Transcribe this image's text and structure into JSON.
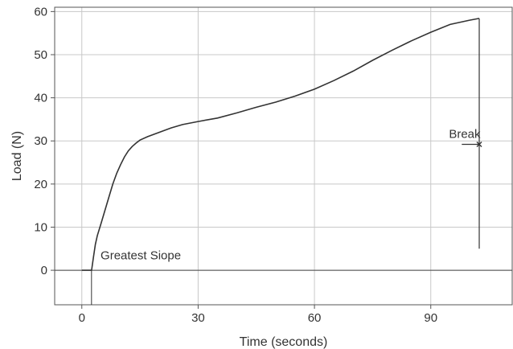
{
  "chart_data": {
    "type": "line",
    "xlabel": "Time (seconds)",
    "ylabel": "Load (N)",
    "xlim": [
      -7,
      111
    ],
    "ylim": [
      -8,
      61
    ],
    "x_ticks": [
      0,
      30,
      60,
      90
    ],
    "y_ticks": [
      0,
      10,
      20,
      30,
      40,
      50,
      60
    ],
    "grid": true,
    "series": [
      {
        "color": "#333333",
        "points": [
          [
            0,
            0
          ],
          [
            2.5,
            0
          ],
          [
            2.6,
            0.5
          ],
          [
            3,
            3
          ],
          [
            3.5,
            6
          ],
          [
            4,
            8
          ],
          [
            5,
            11
          ],
          [
            6,
            14
          ],
          [
            7,
            17
          ],
          [
            8,
            20
          ],
          [
            9,
            22.5
          ],
          [
            10,
            24.5
          ],
          [
            11,
            26.3
          ],
          [
            12,
            27.7
          ],
          [
            13,
            28.7
          ],
          [
            14,
            29.5
          ],
          [
            15,
            30.2
          ],
          [
            17,
            31
          ],
          [
            20,
            32
          ],
          [
            23,
            33
          ],
          [
            26,
            33.8
          ],
          [
            30,
            34.5
          ],
          [
            35,
            35.3
          ],
          [
            40,
            36.5
          ],
          [
            45,
            37.8
          ],
          [
            50,
            39
          ],
          [
            55,
            40.4
          ],
          [
            60,
            42
          ],
          [
            65,
            44
          ],
          [
            70,
            46.2
          ],
          [
            75,
            48.7
          ],
          [
            80,
            51
          ],
          [
            85,
            53.2
          ],
          [
            90,
            55.2
          ],
          [
            95,
            57
          ],
          [
            100,
            58
          ],
          [
            102.5,
            58.4
          ]
        ]
      }
    ],
    "annotations": [
      {
        "text": "Greatest Siope",
        "x": 4,
        "y": 2
      },
      {
        "text": "Break",
        "x": 98,
        "y": 29.2
      }
    ]
  }
}
